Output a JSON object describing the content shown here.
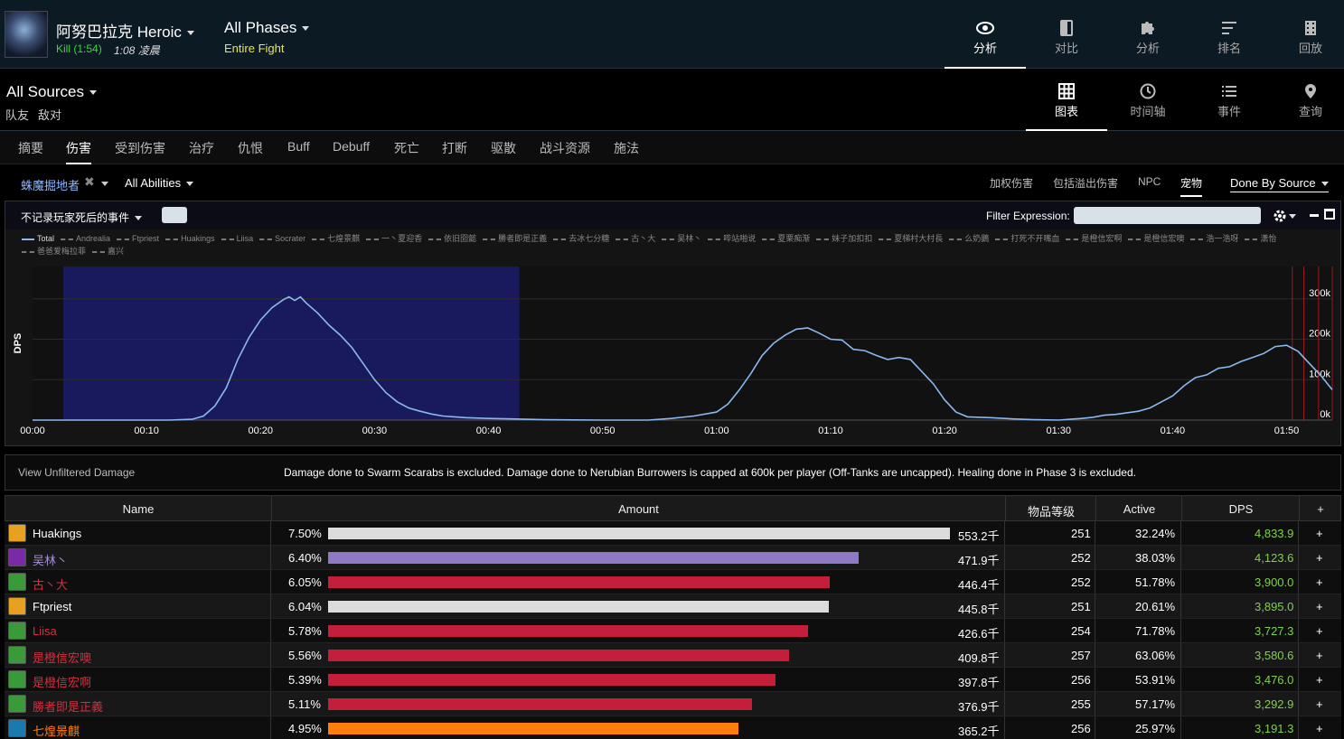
{
  "header": {
    "boss_name": "阿努巴拉克 Heroic",
    "kill_text": "Kill (1:54)",
    "kill_time": "1:08 凌晨",
    "phase_title": "All Phases",
    "phase_sub": "Entire Fight",
    "nav": [
      {
        "label": "分析",
        "icon": "eye-icon",
        "active": true
      },
      {
        "label": "对比",
        "icon": "compare-icon"
      },
      {
        "label": "分析",
        "icon": "puzzle-icon"
      },
      {
        "label": "排名",
        "icon": "rankings-icon"
      },
      {
        "label": "回放",
        "icon": "replay-icon"
      }
    ]
  },
  "sources": {
    "title": "All Sources",
    "links": [
      "队友",
      "敌对"
    ],
    "views": [
      {
        "label": "图表",
        "icon": "grid-icon",
        "active": true
      },
      {
        "label": "时间轴",
        "icon": "clock-icon"
      },
      {
        "label": "事件",
        "icon": "list-icon"
      },
      {
        "label": "查询",
        "icon": "location-pin-icon"
      }
    ]
  },
  "tabs": [
    "摘要",
    "伤害",
    "受到伤害",
    "治疗",
    "仇恨",
    "Buff",
    "Debuff",
    "死亡",
    "打断",
    "驱散",
    "战斗资源",
    "施法"
  ],
  "active_tab": "伤害",
  "filters": {
    "target": "蛛魔掘地者",
    "abilities": "All Abilities",
    "options": [
      "加权伤害",
      "包括溢出伤害",
      "NPC",
      "宠物"
    ],
    "active_option": "宠物",
    "done_by": "Done By Source"
  },
  "graph": {
    "death_option": "不记录玩家死后的事件",
    "filter_label": "Filter Expression:",
    "filter_value": "",
    "y_label": "DPS",
    "legend": [
      "Total",
      "Andrealia",
      "Ftpriest",
      "Huakings",
      "Liisa",
      "Socrater",
      "七煌景麒",
      "一丶夏迎香",
      "依旧囵懿",
      "勝者即是正義",
      "去冰七分糖",
      "古丶大",
      "吴林丶",
      "哔站啪说",
      "夏栗痴渐",
      "妹子加扣扣",
      "夏梯村大村長",
      "么奶鵝",
      "打死不开嘴血",
      "是橙信宏啊",
      "是橙信宏噢",
      "浩一浩呀",
      "潇怡",
      "爸爸爱梅拉菲",
      "嘉兴"
    ],
    "colors": {
      "line": "#8ab8f0",
      "selection": "#191a5e",
      "marker": "#a01818"
    }
  },
  "chart_data": {
    "type": "line",
    "series": [
      {
        "name": "Total"
      }
    ],
    "x_ticks": [
      "00:00",
      "00:10",
      "00:20",
      "00:30",
      "00:40",
      "00:50",
      "01:00",
      "01:10",
      "01:20",
      "01:30",
      "01:40",
      "01:50"
    ],
    "y_ticks": [
      "0k",
      "100k",
      "200k",
      "300k"
    ],
    "xlim_seconds": [
      0,
      114
    ],
    "ylim_k": [
      0,
      380
    ],
    "selection_seconds": [
      2.7,
      42.7
    ],
    "death_markers_seconds": [
      110.5,
      111.5,
      112.8,
      114
    ],
    "points": [
      [
        0,
        0
      ],
      [
        10,
        0
      ],
      [
        12,
        0
      ],
      [
        14,
        2
      ],
      [
        15,
        10
      ],
      [
        16,
        35
      ],
      [
        17,
        80
      ],
      [
        18,
        150
      ],
      [
        19,
        205
      ],
      [
        20,
        248
      ],
      [
        21,
        278
      ],
      [
        22,
        298
      ],
      [
        22.5,
        305
      ],
      [
        23,
        296
      ],
      [
        23.5,
        305
      ],
      [
        24,
        290
      ],
      [
        25,
        265
      ],
      [
        26,
        235
      ],
      [
        27,
        210
      ],
      [
        28,
        180
      ],
      [
        29,
        140
      ],
      [
        30,
        100
      ],
      [
        31,
        68
      ],
      [
        32,
        45
      ],
      [
        33,
        30
      ],
      [
        34,
        22
      ],
      [
        35,
        15
      ],
      [
        36,
        10
      ],
      [
        37,
        8
      ],
      [
        38,
        6
      ],
      [
        40,
        4
      ],
      [
        42,
        3
      ],
      [
        45,
        1
      ],
      [
        50,
        0
      ],
      [
        54,
        0
      ],
      [
        56,
        4
      ],
      [
        58,
        10
      ],
      [
        60,
        20
      ],
      [
        61,
        40
      ],
      [
        62,
        75
      ],
      [
        63,
        115
      ],
      [
        64,
        160
      ],
      [
        65,
        190
      ],
      [
        66,
        210
      ],
      [
        67,
        225
      ],
      [
        68,
        228
      ],
      [
        69,
        215
      ],
      [
        70,
        200
      ],
      [
        71,
        198
      ],
      [
        72,
        175
      ],
      [
        73,
        172
      ],
      [
        74,
        160
      ],
      [
        75,
        150
      ],
      [
        76,
        155
      ],
      [
        77,
        150
      ],
      [
        78,
        120
      ],
      [
        79,
        90
      ],
      [
        80,
        50
      ],
      [
        81,
        20
      ],
      [
        82,
        8
      ],
      [
        84,
        6
      ],
      [
        86,
        3
      ],
      [
        88,
        1
      ],
      [
        90,
        0
      ],
      [
        91,
        2
      ],
      [
        92,
        4
      ],
      [
        93,
        7
      ],
      [
        94,
        12
      ],
      [
        95,
        14
      ],
      [
        96,
        18
      ],
      [
        97,
        22
      ],
      [
        98,
        30
      ],
      [
        99,
        45
      ],
      [
        100,
        60
      ],
      [
        101,
        85
      ],
      [
        102,
        105
      ],
      [
        103,
        112
      ],
      [
        104,
        128
      ],
      [
        105,
        132
      ],
      [
        106,
        145
      ],
      [
        107,
        155
      ],
      [
        108,
        165
      ],
      [
        109,
        182
      ],
      [
        110,
        185
      ],
      [
        111,
        170
      ],
      [
        112,
        140
      ],
      [
        113,
        110
      ],
      [
        114,
        75
      ]
    ]
  },
  "notice": {
    "link": "View Unfiltered Damage",
    "text": "Damage done to Swarm Scarabs is excluded. Damage done to Nerubian Burrowers is capped at 600k per player (Off-Tanks are uncapped). Healing done in Phase 3 is excluded."
  },
  "table": {
    "columns": [
      "Name",
      "Amount",
      "物品等级",
      "Active",
      "DPS",
      "+"
    ],
    "max_amount_k": 553.2,
    "rows": [
      {
        "name": "Huakings",
        "name_color": "#ffffff",
        "icon_color": "#e8a020",
        "pct": "7.50%",
        "amount": "553.2千",
        "amount_k": 553.2,
        "bar_color": "#dcdcdc",
        "ilvl": "251",
        "active": "32.24%",
        "dps": "4,833.9",
        "plus": "+"
      },
      {
        "name": "吴林丶",
        "name_color": "#a78cd8",
        "icon_color": "#7a2aa8",
        "pct": "6.40%",
        "amount": "471.9千",
        "amount_k": 471.9,
        "bar_color": "#8f79c6",
        "ilvl": "252",
        "active": "38.03%",
        "dps": "4,123.6",
        "plus": "+"
      },
      {
        "name": "古丶大",
        "name_color": "#d23040",
        "icon_color": "#3a9a3a",
        "pct": "6.05%",
        "amount": "446.4千",
        "amount_k": 446.4,
        "bar_color": "#c41e3a",
        "ilvl": "252",
        "active": "51.78%",
        "dps": "3,900.0",
        "plus": "+"
      },
      {
        "name": "Ftpriest",
        "name_color": "#ffffff",
        "icon_color": "#e8a020",
        "pct": "6.04%",
        "amount": "445.8千",
        "amount_k": 445.8,
        "bar_color": "#dcdcdc",
        "ilvl": "251",
        "active": "20.61%",
        "dps": "3,895.0",
        "plus": "+"
      },
      {
        "name": "Liisa",
        "name_color": "#d23040",
        "icon_color": "#3a9a3a",
        "pct": "5.78%",
        "amount": "426.6千",
        "amount_k": 426.6,
        "bar_color": "#c41e3a",
        "ilvl": "254",
        "active": "71.78%",
        "dps": "3,727.3",
        "plus": "+"
      },
      {
        "name": "是橙信宏噢",
        "name_color": "#d23040",
        "icon_color": "#3a9a3a",
        "pct": "5.56%",
        "amount": "409.8千",
        "amount_k": 409.8,
        "bar_color": "#c41e3a",
        "ilvl": "257",
        "active": "63.06%",
        "dps": "3,580.6",
        "plus": "+"
      },
      {
        "name": "是橙信宏啊",
        "name_color": "#d23040",
        "icon_color": "#3a9a3a",
        "pct": "5.39%",
        "amount": "397.8千",
        "amount_k": 397.8,
        "bar_color": "#c41e3a",
        "ilvl": "256",
        "active": "53.91%",
        "dps": "3,476.0",
        "plus": "+"
      },
      {
        "name": "勝者即是正義",
        "name_color": "#d23040",
        "icon_color": "#3a9a3a",
        "pct": "5.11%",
        "amount": "376.9千",
        "amount_k": 376.9,
        "bar_color": "#c41e3a",
        "ilvl": "255",
        "active": "57.17%",
        "dps": "3,292.9",
        "plus": "+"
      },
      {
        "name": "七煌景麒",
        "name_color": "#ff7d0a",
        "icon_color": "#1a7ab0",
        "pct": "4.95%",
        "amount": "365.2千",
        "amount_k": 365.2,
        "bar_color": "#ff7d0a",
        "ilvl": "256",
        "active": "25.97%",
        "dps": "3,191.3",
        "plus": "+"
      }
    ]
  }
}
